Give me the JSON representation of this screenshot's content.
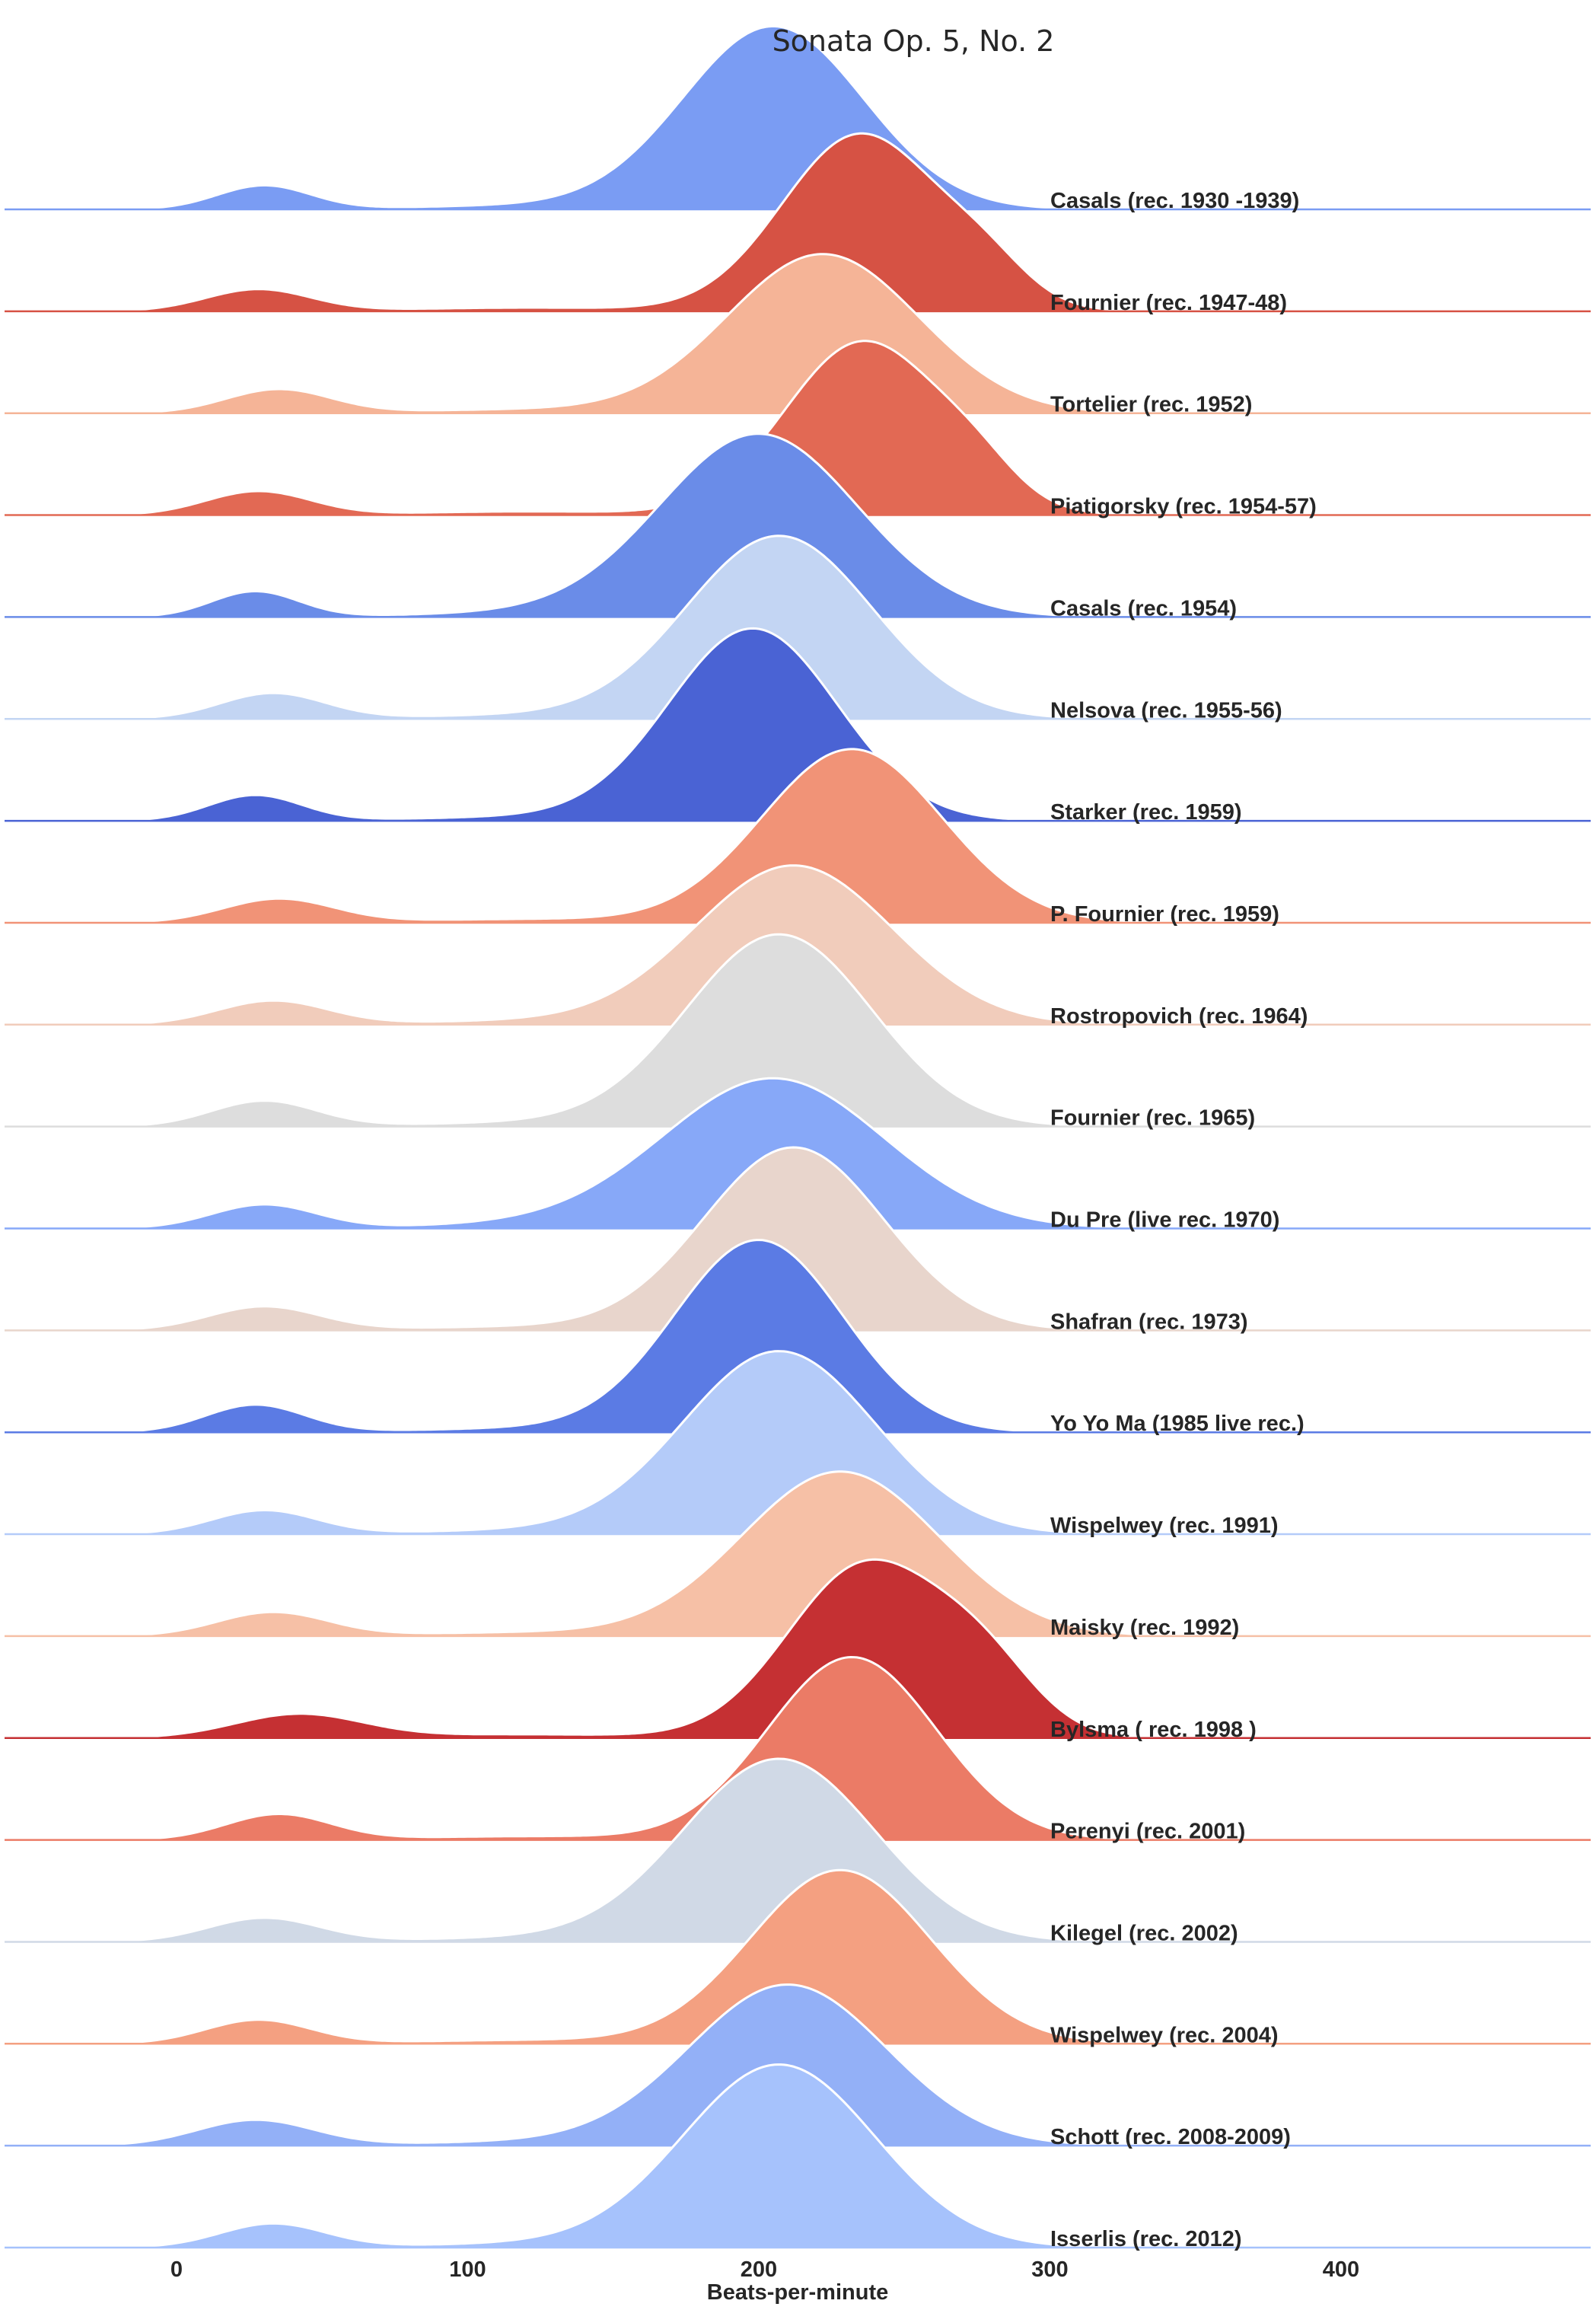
{
  "chart_data": {
    "type": "area",
    "subtype": "ridgeline-kde",
    "title": "Sonata Op. 5, No. 2",
    "xlabel": "Beats-per-minute",
    "ylabel": "",
    "xlim": [
      -60,
      490
    ],
    "xticks": [
      0,
      100,
      200,
      300,
      400
    ],
    "grid": false,
    "legend": "none",
    "series": [
      {
        "name": "Casals (rec. 1930 -1939)",
        "color": "#7a9cf3",
        "peaks": [
          {
            "bpm": 30,
            "height": 0.13,
            "width": 16
          },
          {
            "bpm": 205,
            "height": 1.0,
            "width": 31
          }
        ]
      },
      {
        "name": "Fournier (rec. 1947-48)",
        "color": "#d65244",
        "peaks": [
          {
            "bpm": 28,
            "height": 0.12,
            "width": 18
          },
          {
            "bpm": 235,
            "height": 0.97,
            "width": 27
          },
          {
            "bpm": 278,
            "height": 0.17,
            "width": 15
          }
        ]
      },
      {
        "name": "Tortelier (rec. 1952)",
        "color": "#f5b497",
        "peaks": [
          {
            "bpm": 35,
            "height": 0.13,
            "width": 18
          },
          {
            "bpm": 222,
            "height": 0.87,
            "width": 33
          }
        ]
      },
      {
        "name": "Piatigorsky (rec. 1954-57)",
        "color": "#e26954",
        "peaks": [
          {
            "bpm": 28,
            "height": 0.13,
            "width": 18
          },
          {
            "bpm": 236,
            "height": 0.95,
            "width": 27
          },
          {
            "bpm": 275,
            "height": 0.14,
            "width": 14
          }
        ]
      },
      {
        "name": "Casals (rec. 1954)",
        "color": "#6a8ce8",
        "peaks": [
          {
            "bpm": 27,
            "height": 0.14,
            "width": 15
          },
          {
            "bpm": 200,
            "height": 1.0,
            "width": 34
          }
        ]
      },
      {
        "name": "Nelsova (rec. 1955-56)",
        "color": "#c3d5f3",
        "peaks": [
          {
            "bpm": 33,
            "height": 0.14,
            "width": 18
          },
          {
            "bpm": 207,
            "height": 1.0,
            "width": 32
          }
        ]
      },
      {
        "name": "Starker (rec. 1959)",
        "color": "#4a63d4",
        "peaks": [
          {
            "bpm": 27,
            "height": 0.14,
            "width": 16
          },
          {
            "bpm": 198,
            "height": 1.05,
            "width": 29
          }
        ]
      },
      {
        "name": "P. Fournier (rec. 1959)",
        "color": "#f19377",
        "peaks": [
          {
            "bpm": 35,
            "height": 0.13,
            "width": 19
          },
          {
            "bpm": 232,
            "height": 0.95,
            "width": 31
          }
        ]
      },
      {
        "name": "Rostropovich (rec. 1964)",
        "color": "#f1ccbb",
        "peaks": [
          {
            "bpm": 33,
            "height": 0.13,
            "width": 19
          },
          {
            "bpm": 212,
            "height": 0.87,
            "width": 34
          }
        ]
      },
      {
        "name": "Fournier (rec. 1965)",
        "color": "#dddddd",
        "peaks": [
          {
            "bpm": 30,
            "height": 0.14,
            "width": 18
          },
          {
            "bpm": 207,
            "height": 1.05,
            "width": 32
          }
        ]
      },
      {
        "name": "Du Pre (live rec. 1970)",
        "color": "#87a8f8",
        "peaks": [
          {
            "bpm": 30,
            "height": 0.13,
            "width": 18
          },
          {
            "bpm": 205,
            "height": 0.82,
            "width": 38
          }
        ]
      },
      {
        "name": "Shafran (rec. 1973)",
        "color": "#e8d5cc",
        "peaks": [
          {
            "bpm": 30,
            "height": 0.13,
            "width": 19
          },
          {
            "bpm": 212,
            "height": 1.0,
            "width": 31
          }
        ]
      },
      {
        "name": "Yo Yo Ma (1985 live rec.)",
        "color": "#5b7be4",
        "peaks": [
          {
            "bpm": 27,
            "height": 0.15,
            "width": 17
          },
          {
            "bpm": 200,
            "height": 1.05,
            "width": 29
          }
        ]
      },
      {
        "name": "Wispelwey (rec. 1991)",
        "color": "#b4cbf9",
        "peaks": [
          {
            "bpm": 30,
            "height": 0.13,
            "width": 18
          },
          {
            "bpm": 207,
            "height": 1.0,
            "width": 33
          }
        ]
      },
      {
        "name": "Maisky (rec. 1992)",
        "color": "#f6c0a6",
        "peaks": [
          {
            "bpm": 33,
            "height": 0.13,
            "width": 19
          },
          {
            "bpm": 228,
            "height": 0.9,
            "width": 34
          }
        ]
      },
      {
        "name": "Bylsma ( rec. 1998 )",
        "color": "#c53033",
        "peaks": [
          {
            "bpm": 42,
            "height": 0.13,
            "width": 22
          },
          {
            "bpm": 237,
            "height": 0.95,
            "width": 27
          },
          {
            "bpm": 278,
            "height": 0.3,
            "width": 18
          }
        ]
      },
      {
        "name": "Perenyi (rec. 2001)",
        "color": "#eb7b66",
        "peaks": [
          {
            "bpm": 35,
            "height": 0.14,
            "width": 18
          },
          {
            "bpm": 232,
            "height": 1.0,
            "width": 29
          }
        ]
      },
      {
        "name": "Kilegel (rec. 2002)",
        "color": "#d0d9e6",
        "peaks": [
          {
            "bpm": 30,
            "height": 0.13,
            "width": 19
          },
          {
            "bpm": 207,
            "height": 1.0,
            "width": 33
          }
        ]
      },
      {
        "name": "Wispelwey (rec. 2004)",
        "color": "#f4a081",
        "peaks": [
          {
            "bpm": 28,
            "height": 0.13,
            "width": 18
          },
          {
            "bpm": 228,
            "height": 0.95,
            "width": 31
          }
        ]
      },
      {
        "name": "Schott (rec. 2008-2009)",
        "color": "#93b0f7",
        "peaks": [
          {
            "bpm": 27,
            "height": 0.14,
            "width": 20
          },
          {
            "bpm": 210,
            "height": 0.88,
            "width": 34
          }
        ]
      },
      {
        "name": "Isserlis (rec. 2012)",
        "color": "#a6c2fc",
        "peaks": [
          {
            "bpm": 33,
            "height": 0.13,
            "width": 18
          },
          {
            "bpm": 207,
            "height": 1.0,
            "width": 33
          }
        ]
      }
    ]
  }
}
